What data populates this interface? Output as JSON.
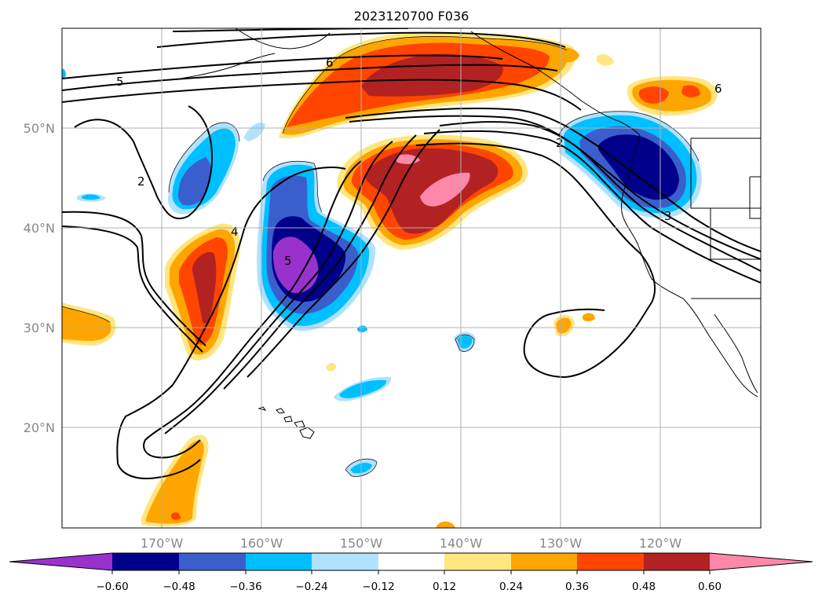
{
  "title": "2023120700 F036",
  "map": {
    "lat_labels": [
      "50°N",
      "40°N",
      "30°N",
      "20°N"
    ],
    "lon_labels": [
      "170°W",
      "160°W",
      "150°W",
      "140°W",
      "130°W",
      "120°W"
    ],
    "gridlines": true,
    "contour_labels": [
      "5",
      "6",
      "2",
      "5",
      "4",
      "3",
      "2",
      "6"
    ]
  },
  "colorbar": {
    "ticks": [
      "−0.60",
      "−0.48",
      "−0.36",
      "−0.24",
      "−0.12",
      "0.12",
      "0.24",
      "0.36",
      "0.48",
      "0.60"
    ],
    "colors": [
      "#9932cc",
      "#00008b",
      "#3a5fcd",
      "#00bfff",
      "#b0e2ff",
      "#ffffff",
      "#ffe680",
      "#ffa500",
      "#ff4500",
      "#b22222",
      "#ff88aa"
    ],
    "extend": "both"
  }
}
